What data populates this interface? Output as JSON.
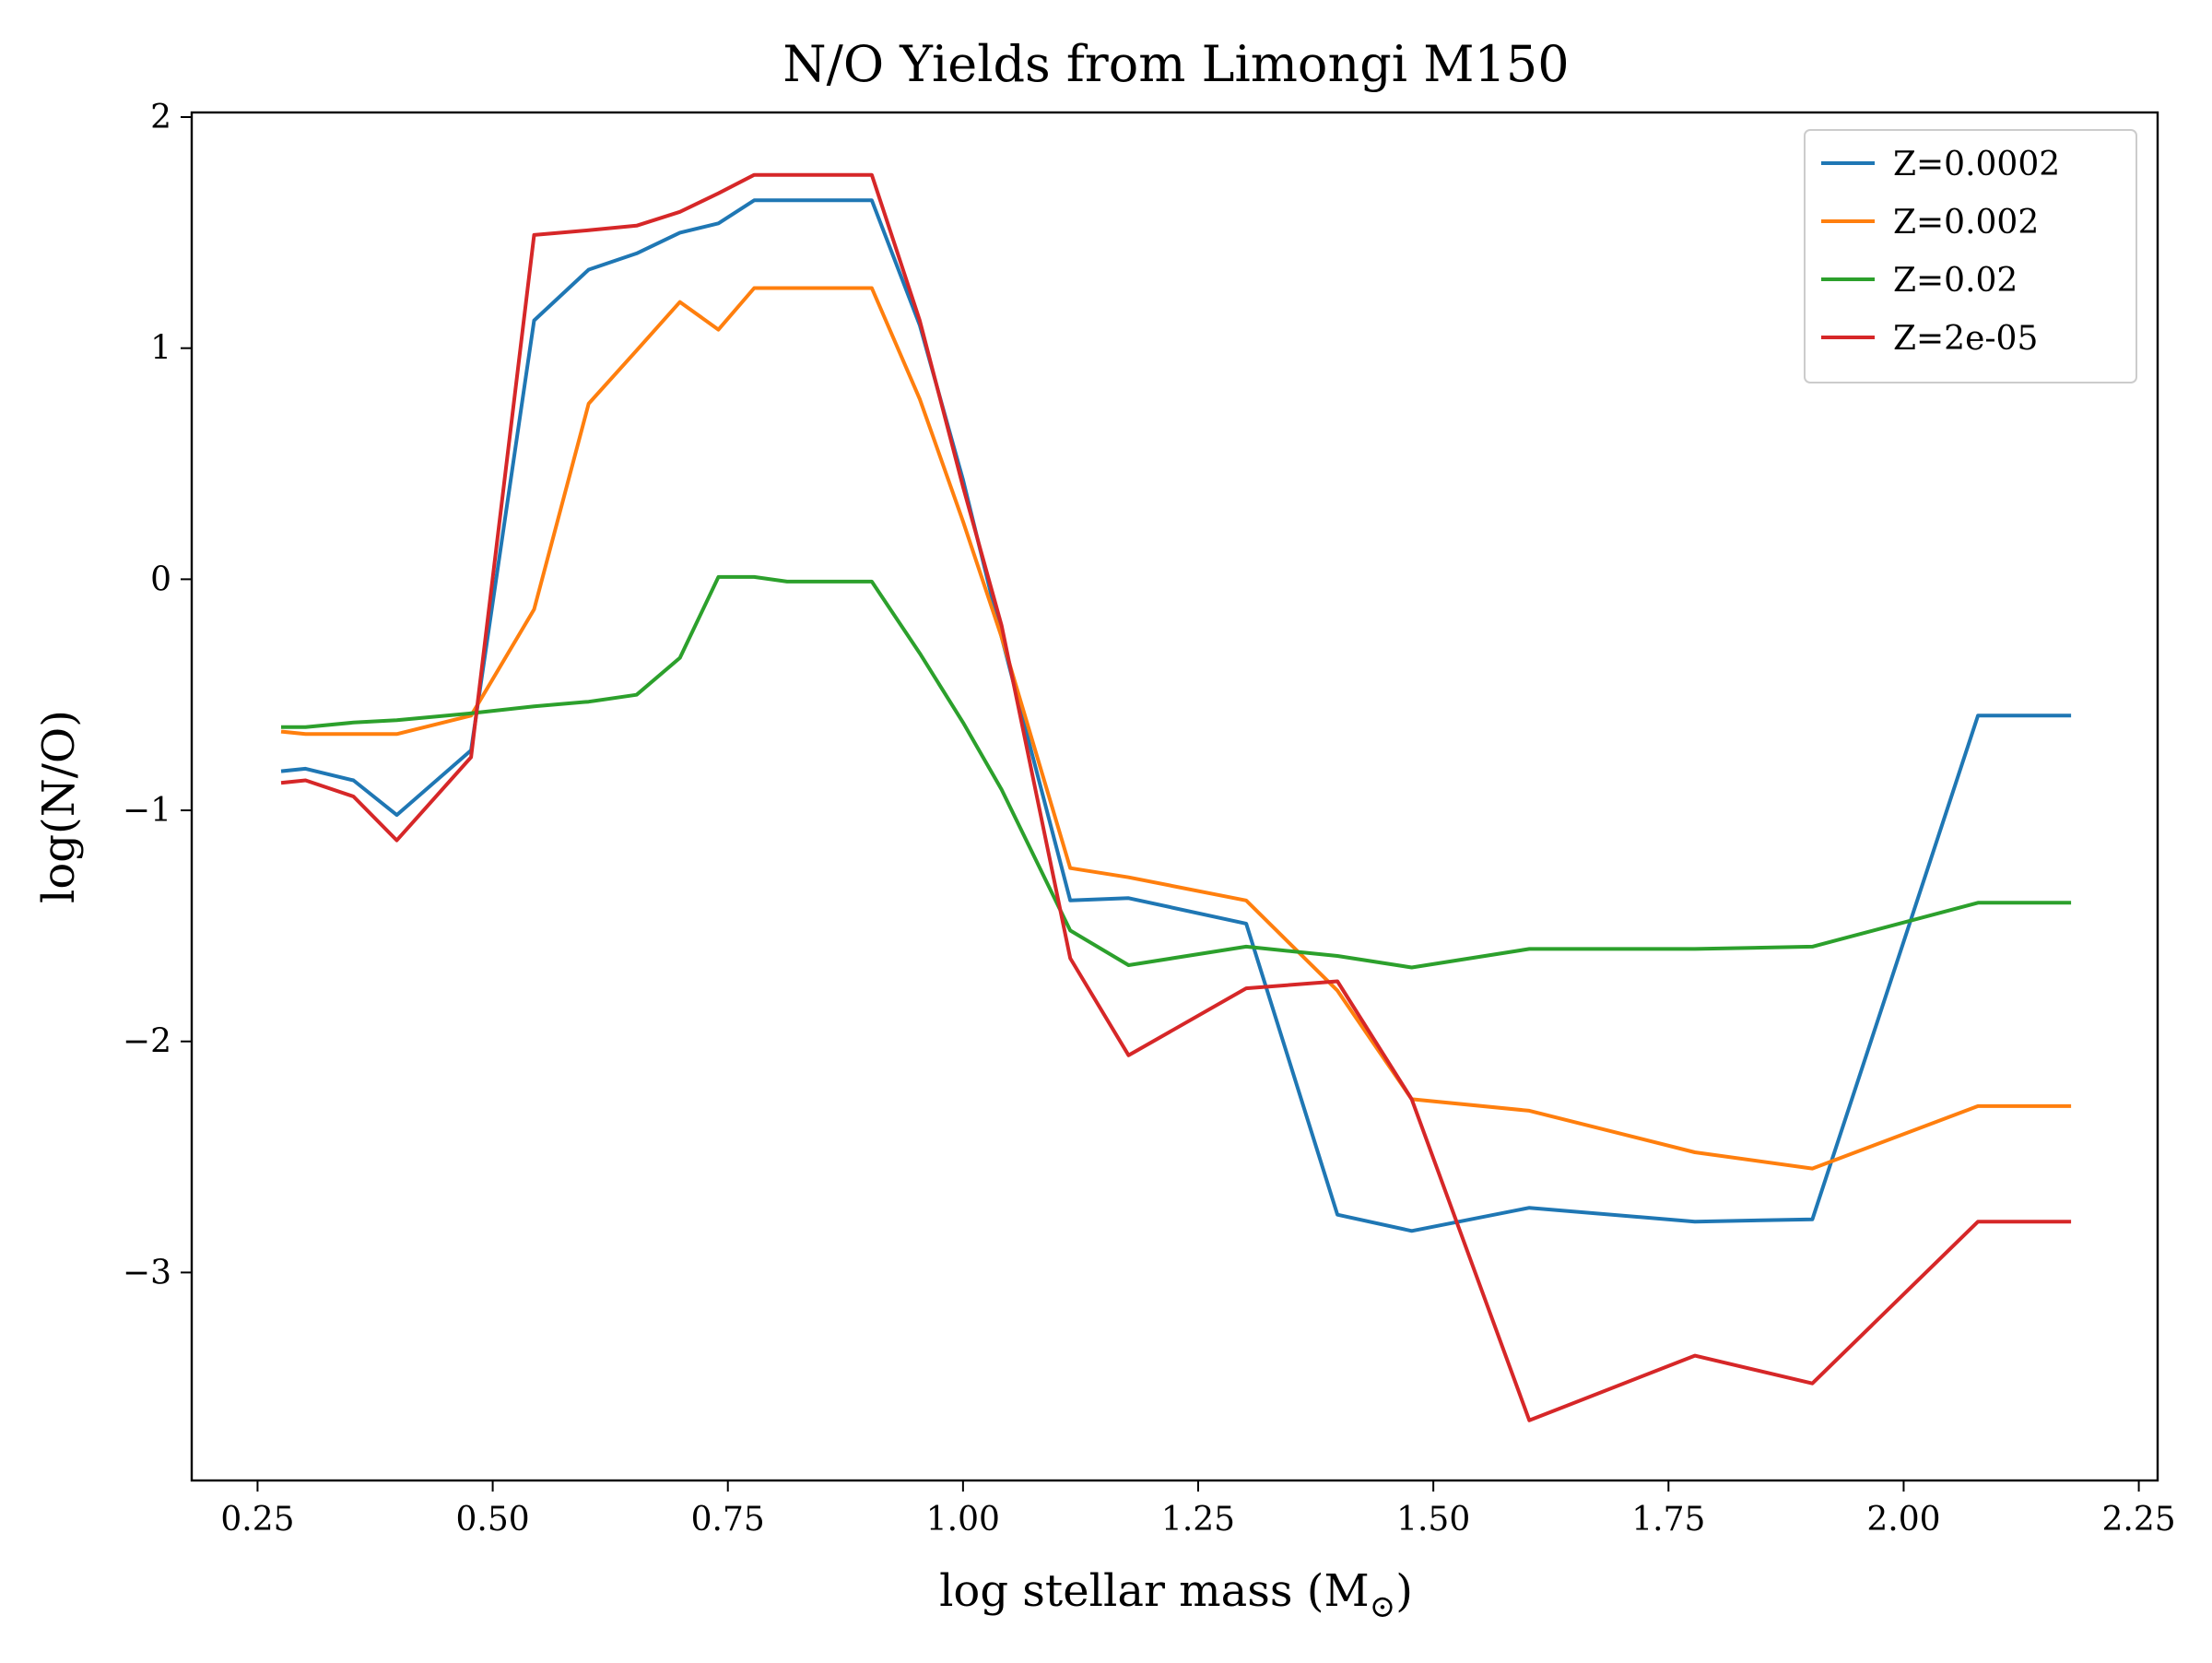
{
  "chart_data": {
    "type": "line",
    "title": "N/O Yields from Limongi M150",
    "xlabel": "log stellar mass (M",
    "xlabel_sub": "⊙",
    "xlabel_end": ")",
    "ylabel": "log(N/O)",
    "xlim": [
      0.18,
      2.27
    ],
    "ylim": [
      -3.9,
      2.02
    ],
    "xticks": [
      0.25,
      0.5,
      0.75,
      1.0,
      1.25,
      1.5,
      1.75,
      2.0,
      2.25
    ],
    "xtick_labels": [
      "0.25",
      "0.50",
      "0.75",
      "1.00",
      "1.25",
      "1.50",
      "1.75",
      "2.00",
      "2.25"
    ],
    "yticks": [
      2,
      1,
      0,
      -1,
      -2,
      -3
    ],
    "ytick_labels": [
      "2",
      "1",
      "0",
      "−1",
      "−2",
      "−3"
    ],
    "grid": false,
    "legend_position": "top-right",
    "series": [
      {
        "name": "Z=0.0002",
        "color": "#1f77b4",
        "x": [
          0.277,
          0.301,
          0.352,
          0.398,
          0.477,
          0.544,
          0.602,
          0.653,
          0.699,
          0.74,
          0.778,
          0.813,
          0.845,
          0.875,
          0.903,
          0.954,
          1.0,
          1.041,
          1.114,
          1.176,
          1.301,
          1.398,
          1.477,
          1.602,
          1.778,
          1.903,
          2.079,
          2.176
        ],
        "y": [
          -0.83,
          -0.82,
          -0.87,
          -1.02,
          -0.74,
          1.12,
          1.34,
          1.41,
          1.5,
          1.54,
          1.64,
          1.64,
          1.64,
          1.64,
          1.64,
          1.1,
          0.43,
          -0.25,
          -1.39,
          -1.38,
          -1.49,
          -2.75,
          -2.82,
          -2.72,
          -2.78,
          -2.77,
          -0.59,
          -0.59
        ]
      },
      {
        "name": "Z=0.002",
        "color": "#ff7f0e",
        "x": [
          0.277,
          0.301,
          0.352,
          0.398,
          0.477,
          0.544,
          0.602,
          0.653,
          0.699,
          0.74,
          0.778,
          0.813,
          0.845,
          0.875,
          0.903,
          0.954,
          1.0,
          1.041,
          1.114,
          1.176,
          1.301,
          1.398,
          1.477,
          1.602,
          1.778,
          1.903,
          2.079,
          2.176
        ],
        "y": [
          -0.66,
          -0.67,
          -0.67,
          -0.67,
          -0.59,
          -0.13,
          0.76,
          0.99,
          1.2,
          1.08,
          1.26,
          1.26,
          1.26,
          1.26,
          1.26,
          0.78,
          0.25,
          -0.25,
          -1.25,
          -1.29,
          -1.39,
          -1.78,
          -2.25,
          -2.3,
          -2.48,
          -2.55,
          -2.28,
          -2.28
        ]
      },
      {
        "name": "Z=0.02",
        "color": "#2ca02c",
        "x": [
          0.277,
          0.301,
          0.352,
          0.398,
          0.477,
          0.544,
          0.602,
          0.653,
          0.699,
          0.74,
          0.778,
          0.813,
          0.845,
          0.875,
          0.903,
          0.954,
          1.0,
          1.041,
          1.114,
          1.176,
          1.301,
          1.398,
          1.477,
          1.602,
          1.778,
          1.903,
          2.079,
          2.176
        ],
        "y": [
          -0.64,
          -0.64,
          -0.62,
          -0.61,
          -0.58,
          -0.55,
          -0.53,
          -0.5,
          -0.34,
          0.01,
          0.01,
          -0.01,
          -0.01,
          -0.01,
          -0.01,
          -0.32,
          -0.62,
          -0.91,
          -1.52,
          -1.67,
          -1.59,
          -1.63,
          -1.68,
          -1.6,
          -1.6,
          -1.59,
          -1.4,
          -1.4
        ]
      },
      {
        "name": "Z=2e-05",
        "color": "#d62728",
        "x": [
          0.277,
          0.301,
          0.352,
          0.398,
          0.477,
          0.544,
          0.602,
          0.653,
          0.699,
          0.74,
          0.778,
          0.813,
          0.845,
          0.875,
          0.903,
          0.954,
          1.0,
          1.041,
          1.114,
          1.176,
          1.301,
          1.398,
          1.477,
          1.602,
          1.778,
          1.903,
          2.079,
          2.176
        ],
        "y": [
          -0.88,
          -0.87,
          -0.94,
          -1.13,
          -0.77,
          1.49,
          1.51,
          1.53,
          1.59,
          1.67,
          1.75,
          1.75,
          1.75,
          1.75,
          1.75,
          1.12,
          0.4,
          -0.2,
          -1.64,
          -2.06,
          -1.77,
          -1.74,
          -2.25,
          -3.64,
          -3.36,
          -3.48,
          -2.78,
          -2.78
        ]
      }
    ]
  }
}
